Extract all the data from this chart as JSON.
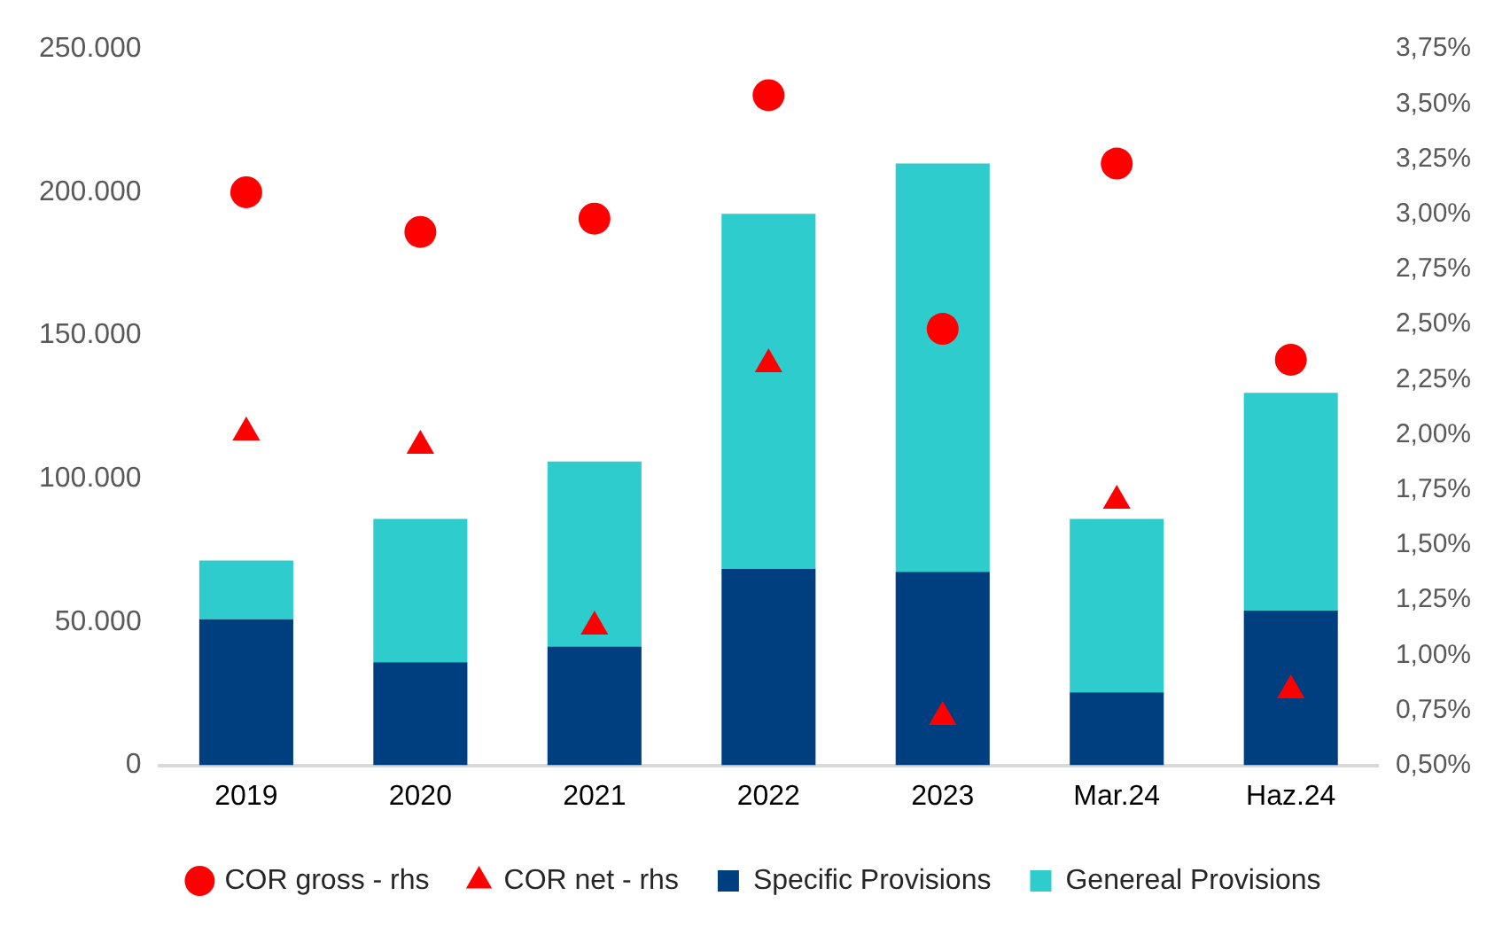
{
  "chart_data": {
    "type": "bar",
    "stacked": true,
    "categories": [
      "2019",
      "2020",
      "2021",
      "2022",
      "2023",
      "Mar.24",
      "Haz.24"
    ],
    "series": [
      {
        "name": "Specific Provisions",
        "color": "#003f7f",
        "values": [
          51000,
          36000,
          41500,
          68500,
          67500,
          25500,
          54000
        ]
      },
      {
        "name": "Genereal Provisions",
        "color": "#2ecccc",
        "values": [
          20500,
          50000,
          64500,
          124000,
          142500,
          60500,
          76000
        ]
      },
      {
        "name": "COR gross - rhs",
        "type": "scatter",
        "marker": "circle",
        "axis": "y2",
        "color": "#ff0000",
        "values": [
          3.1,
          2.92,
          2.98,
          3.54,
          2.48,
          3.23,
          2.34
        ]
      },
      {
        "name": "COR net - rhs",
        "type": "scatter",
        "marker": "triangle",
        "axis": "y2",
        "color": "#ff0000",
        "values": [
          2.01,
          1.95,
          1.13,
          2.32,
          0.72,
          1.7,
          0.84
        ]
      }
    ],
    "ylim": [
      0,
      250000
    ],
    "yticks": [
      {
        "value": 0,
        "label": "0"
      },
      {
        "value": 50000,
        "label": "50.000"
      },
      {
        "value": 100000,
        "label": "100.000"
      },
      {
        "value": 150000,
        "label": "150.000"
      },
      {
        "value": 200000,
        "label": "200.000"
      },
      {
        "value": 250000,
        "label": "250.000"
      }
    ],
    "y2lim": [
      0.5,
      3.75
    ],
    "y2ticks": [
      {
        "value": 0.5,
        "label": "0,50%"
      },
      {
        "value": 0.75,
        "label": "0,75%"
      },
      {
        "value": 1,
        "label": "1,00%"
      },
      {
        "value": 1.25,
        "label": "1,25%"
      },
      {
        "value": 1.5,
        "label": "1,50%"
      },
      {
        "value": 1.75,
        "label": "1,75%"
      },
      {
        "value": 2,
        "label": "2,00%"
      },
      {
        "value": 2.25,
        "label": "2,25%"
      },
      {
        "value": 2.5,
        "label": "2,50%"
      },
      {
        "value": 2.75,
        "label": "2,75%"
      },
      {
        "value": 3,
        "label": "3,00%"
      },
      {
        "value": 3.25,
        "label": "3,25%"
      },
      {
        "value": 3.5,
        "label": "3,50%"
      },
      {
        "value": 3.75,
        "label": "3,75%"
      }
    ],
    "grid": false,
    "legend": "bottom"
  }
}
